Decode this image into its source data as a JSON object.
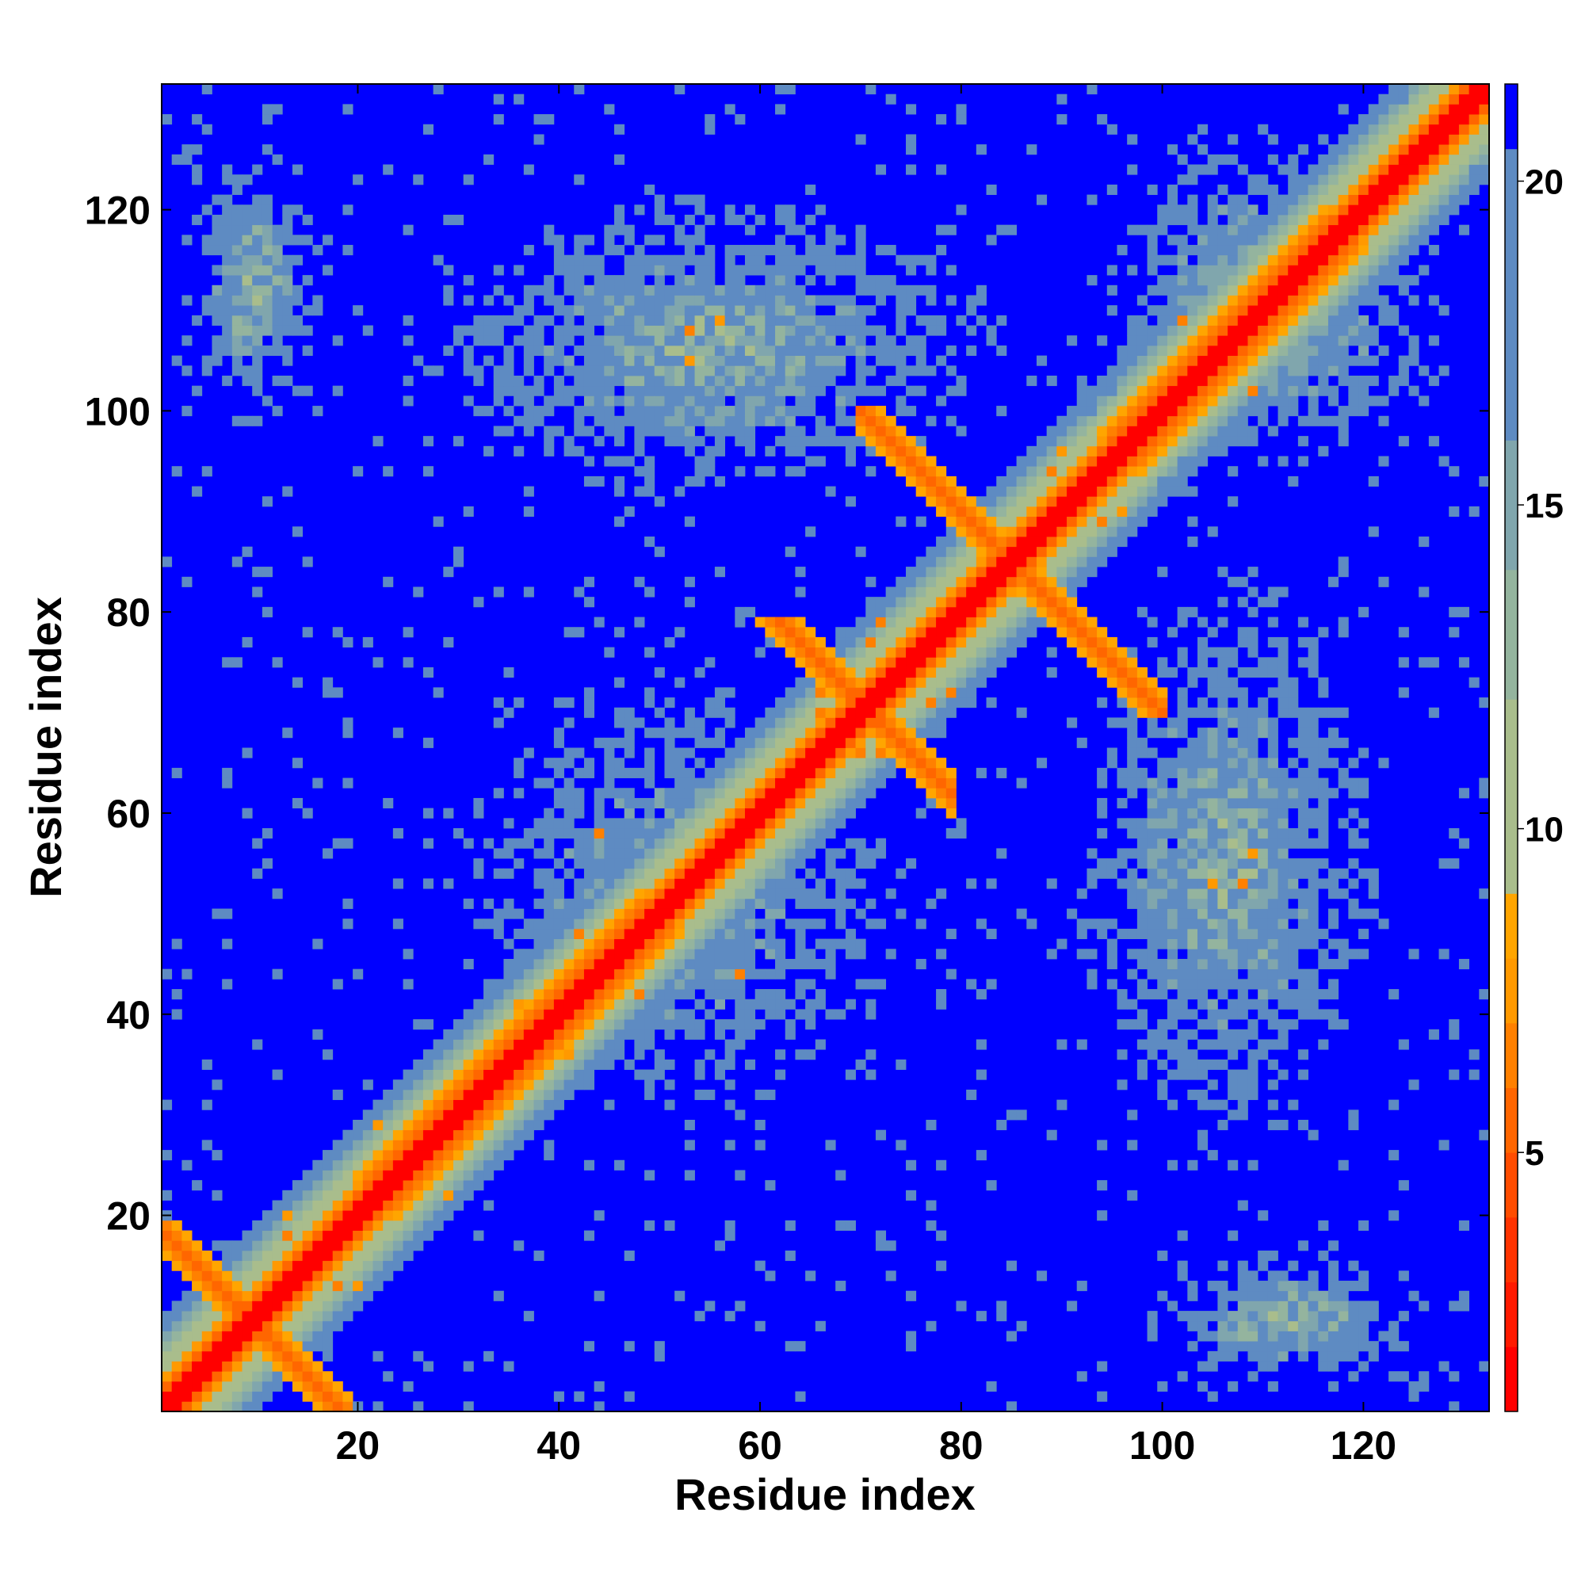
{
  "chart_data": {
    "type": "heatmap",
    "title": "",
    "xlabel": "Residue index",
    "ylabel": "Residue index",
    "xlim": [
      0.5,
      132.5
    ],
    "ylim": [
      0.5,
      132.5
    ],
    "x_ticks": [
      20,
      40,
      60,
      80,
      100,
      120
    ],
    "y_ticks": [
      20,
      40,
      60,
      80,
      100,
      120
    ],
    "x_tick_labels": [
      "20",
      "40",
      "60",
      "80",
      "100",
      "120"
    ],
    "y_tick_labels": [
      "20",
      "40",
      "60",
      "80",
      "100",
      "120"
    ],
    "n_residues": 132,
    "colorbar": {
      "range": [
        1,
        21.5
      ],
      "ticks": [
        5,
        10,
        15,
        20
      ],
      "tick_labels": [
        "5",
        "10",
        "15",
        "20"
      ],
      "bands": [
        {
          "from": 1,
          "to": 2,
          "color": "#ff0000"
        },
        {
          "from": 2,
          "to": 3,
          "color": "#ff1a00"
        },
        {
          "from": 3,
          "to": 4,
          "color": "#ff3300"
        },
        {
          "from": 4,
          "to": 5,
          "color": "#ff4d00"
        },
        {
          "from": 5,
          "to": 6,
          "color": "#ff6600"
        },
        {
          "from": 6,
          "to": 7,
          "color": "#ff8000"
        },
        {
          "from": 7,
          "to": 8,
          "color": "#ff9900"
        },
        {
          "from": 8,
          "to": 9,
          "color": "#ffa500"
        },
        {
          "from": 9,
          "to": 12,
          "color": "#a9bd8c"
        },
        {
          "from": 12,
          "to": 14,
          "color": "#94b49e"
        },
        {
          "from": 14,
          "to": 16,
          "color": "#80a6ad"
        },
        {
          "from": 16,
          "to": 20.5,
          "color": "#5e8bc2"
        },
        {
          "from": 20.5,
          "to": 21.5,
          "color": "#0000ff"
        }
      ]
    },
    "features": {
      "main_diagonal": {
        "from": 1,
        "to": 132
      },
      "antiparallel_contacts": [
        {
          "i_range": [
            1,
            16
          ],
          "j_range": [
            1,
            19
          ],
          "note": "hairpin near N-terminus"
        },
        {
          "i_range": [
            55,
            79
          ],
          "j_range": [
            55,
            79
          ],
          "note": "X-shaped cross around residue 70"
        },
        {
          "i_range": [
            70,
            78
          ],
          "j_range": [
            92,
            100
          ],
          "note": "strand pairing"
        },
        {
          "i_range": [
            93,
            99
          ],
          "j_range": [
            71,
            78
          ],
          "note": "strand pairing"
        }
      ],
      "parallel_band": [
        {
          "from": 22,
          "to": 50,
          "offset": 3
        },
        {
          "from": 96,
          "to": 118,
          "offset": 3
        }
      ],
      "contact_clusters": [
        {
          "x_range": [
            20,
            90
          ],
          "y_range": [
            88,
            125
          ]
        },
        {
          "x_range": [
            88,
            125
          ],
          "y_range": [
            20,
            90
          ]
        },
        {
          "x_range": [
            90,
            132
          ],
          "y_range": [
            92,
            132
          ]
        },
        {
          "x_range": [
            1,
            18
          ],
          "y_range": [
            95,
            130
          ]
        },
        {
          "x_range": [
            95,
            130
          ],
          "y_range": [
            1,
            18
          ]
        },
        {
          "x_range": [
            25,
            80
          ],
          "y_range": [
            20,
            80
          ]
        }
      ]
    }
  }
}
